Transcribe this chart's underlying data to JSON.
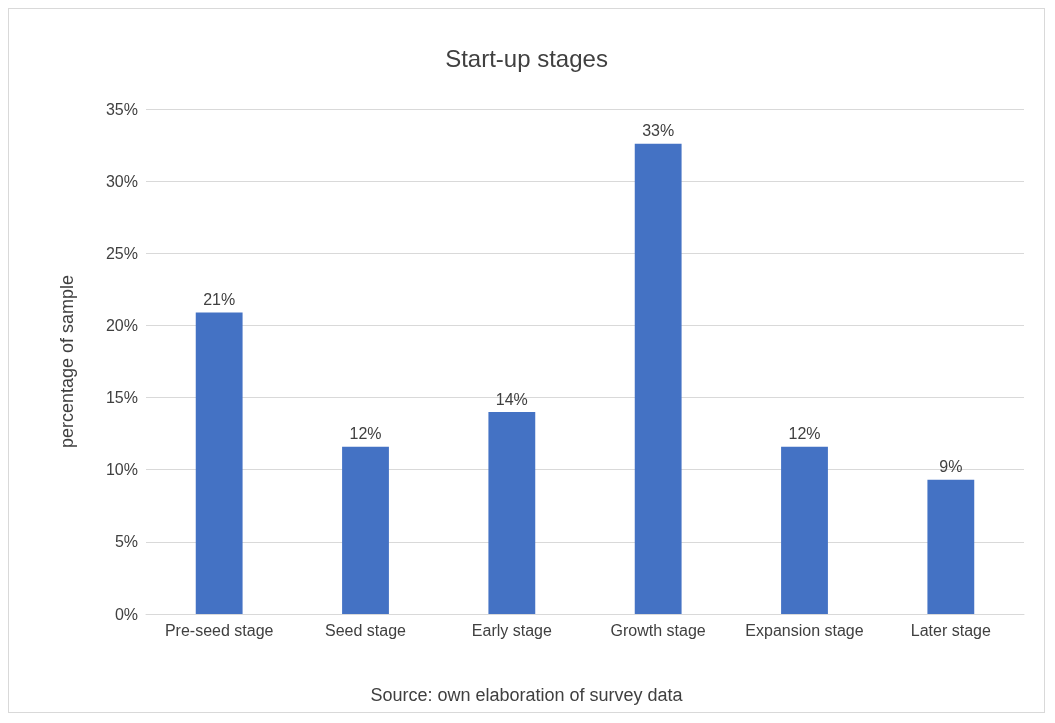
{
  "chart_data": {
    "type": "bar",
    "title": "Start-up stages",
    "ylabel": "percentage of sample",
    "categories": [
      "Pre-seed stage",
      "Seed stage",
      "Early stage",
      "Growth stage",
      "Expansion stage",
      "Later stage"
    ],
    "values": [
      20.9,
      11.6,
      14,
      32.6,
      11.6,
      9.3
    ],
    "value_labels": [
      "21%",
      "12%",
      "14%",
      "33%",
      "12%",
      "9%"
    ],
    "color": "#4472c4",
    "ylim": [
      0,
      35
    ],
    "yticks": [
      {
        "value": 0,
        "label": "0%"
      },
      {
        "value": 5,
        "label": "5%"
      },
      {
        "value": 10,
        "label": "10%"
      },
      {
        "value": 15,
        "label": "15%"
      },
      {
        "value": 20,
        "label": "20%"
      },
      {
        "value": 25,
        "label": "25%"
      },
      {
        "value": 30,
        "label": "30%"
      },
      {
        "value": 35,
        "label": "35%"
      }
    ],
    "grid": "y",
    "annotations": [
      "Source: own elaboration of survey data"
    ]
  }
}
